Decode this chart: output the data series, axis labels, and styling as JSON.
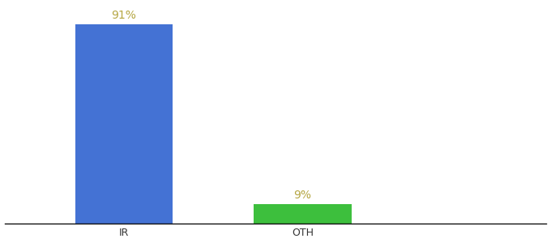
{
  "categories": [
    "IR",
    "OTH"
  ],
  "values": [
    91,
    9
  ],
  "bar_colors": [
    "#4472d4",
    "#3dbf3d"
  ],
  "label_color": "#b5a642",
  "label_fontsize": 10,
  "xlabel_fontsize": 9,
  "background_color": "#ffffff",
  "bar_width": 0.18,
  "ylim": [
    0,
    100
  ],
  "annotations": [
    "91%",
    "9%"
  ],
  "x_positions": [
    0.22,
    0.55
  ],
  "xlim": [
    0.0,
    1.0
  ]
}
